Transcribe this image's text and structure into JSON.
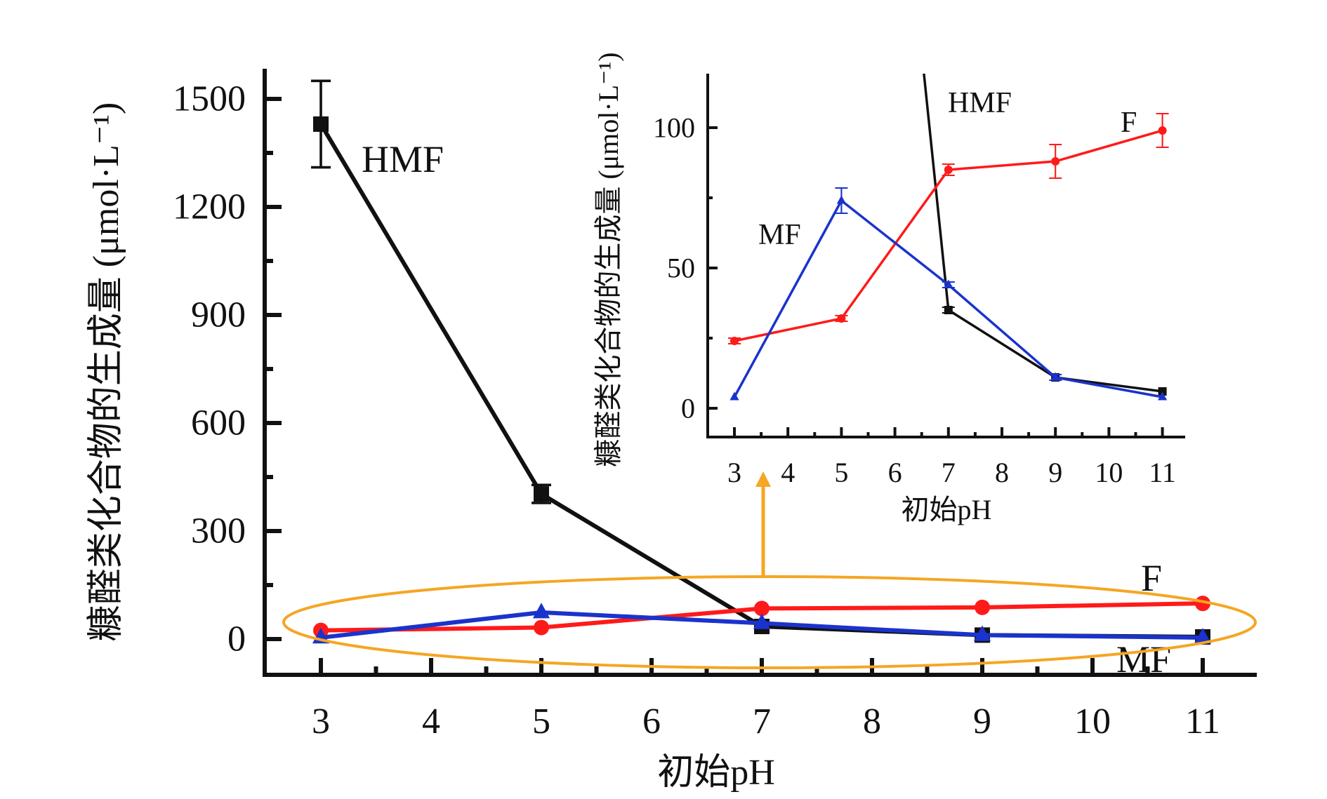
{
  "chart_data": [
    {
      "id": "main",
      "type": "line",
      "title": "",
      "xlabel": "初始pH",
      "ylabel": "糠醛类化合物的生成量 (μmol·L⁻¹)",
      "x": [
        3,
        5,
        7,
        9,
        11
      ],
      "xlim": [
        2.5,
        11.8
      ],
      "ylim": [
        -80,
        1650
      ],
      "xticks": [
        3,
        4,
        5,
        6,
        7,
        8,
        9,
        10,
        11
      ],
      "xtick_labels": [
        "3",
        "4",
        "5",
        "6",
        "7",
        "8",
        "9",
        "10",
        "11"
      ],
      "yticks": [
        0,
        300,
        600,
        900,
        1200,
        1500
      ],
      "ytick_labels": [
        "0",
        "300",
        "600",
        "900",
        "1200",
        "1500"
      ],
      "grid": false,
      "legend": "none (inline labels)",
      "series": [
        {
          "name": "HMF",
          "label": "HMF",
          "color": "#111111",
          "marker": "square",
          "values": [
            1430,
            403,
            35,
            11,
            6
          ],
          "errors": [
            120,
            25,
            2,
            1,
            1
          ]
        },
        {
          "name": "F",
          "label": "F",
          "color": "#ff1a1a",
          "marker": "circle",
          "values": [
            24,
            32,
            85,
            88,
            99
          ],
          "errors": [
            1,
            1,
            2,
            6,
            6
          ]
        },
        {
          "name": "MF",
          "label": "MF",
          "color": "#1a33cc",
          "marker": "triangle",
          "values": [
            4,
            74,
            44,
            11,
            4
          ],
          "errors": [
            0.5,
            4.5,
            1,
            1,
            0.5
          ]
        }
      ],
      "annotations": [
        {
          "type": "ellipse",
          "color": "#f5a623",
          "description": "highlights low-concentration region (F, MF)"
        },
        {
          "type": "arrow",
          "color": "#f5a623",
          "description": "points from highlighted region to inset"
        }
      ]
    },
    {
      "id": "inset",
      "type": "line",
      "title": "",
      "xlabel": "初始pH",
      "ylabel": "糠醛类化合物的生成量 (μmol·L⁻¹)",
      "x": [
        3,
        5,
        7,
        9,
        11
      ],
      "xlim": [
        2.5,
        11.4
      ],
      "ylim": [
        -10,
        118
      ],
      "xticks": [
        3,
        4,
        5,
        6,
        7,
        8,
        9,
        10,
        11
      ],
      "xtick_labels": [
        "3",
        "4",
        "5",
        "6",
        "7",
        "8",
        "9",
        "10",
        "11"
      ],
      "yticks": [
        0,
        50,
        100
      ],
      "ytick_labels": [
        "0",
        "50",
        "100"
      ],
      "grid": false,
      "legend": "none (inline labels)",
      "series": [
        {
          "name": "HMF",
          "label": "HMF",
          "color": "#111111",
          "marker": "square",
          "values": [
            1430,
            403,
            35,
            11,
            6
          ],
          "errors": [
            0,
            0,
            1,
            0.5,
            0.5
          ]
        },
        {
          "name": "F",
          "label": "F",
          "color": "#ff1a1a",
          "marker": "circle",
          "values": [
            24,
            32,
            85,
            88,
            99
          ],
          "errors": [
            1,
            1,
            2,
            6,
            6
          ]
        },
        {
          "name": "MF",
          "label": "MF",
          "color": "#1a33cc",
          "marker": "triangle",
          "values": [
            4,
            74,
            44,
            11,
            4
          ],
          "errors": [
            0.5,
            4.5,
            1,
            1,
            0.5
          ]
        }
      ]
    }
  ]
}
